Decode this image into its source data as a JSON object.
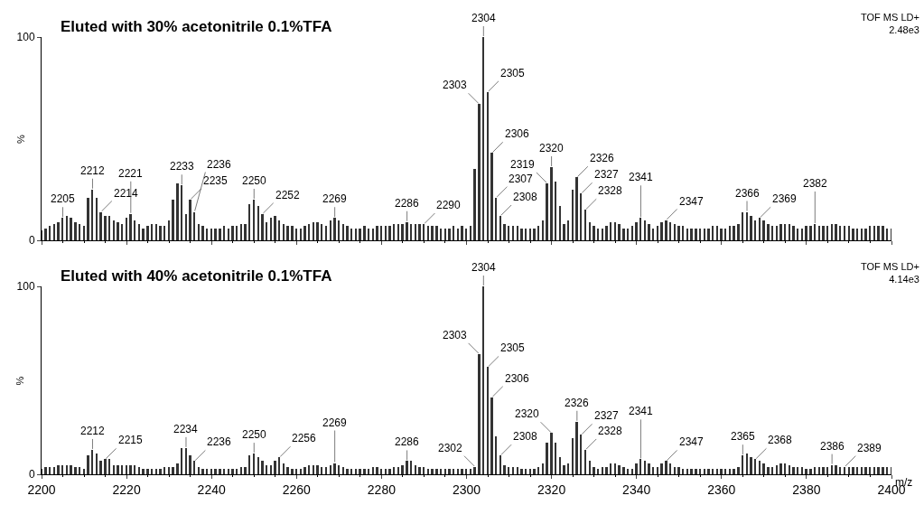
{
  "chart_data": [
    {
      "type": "bar",
      "title": "Eluted with 30% acetonitrile 0.1%TFA",
      "ylabel": "%",
      "color": "#333333",
      "x": [
        2200,
        2201,
        2202,
        2203,
        2204,
        2205,
        2206,
        2207,
        2208,
        2209,
        2210,
        2211,
        2212,
        2213,
        2214,
        2215,
        2216,
        2217,
        2218,
        2219,
        2220,
        2221,
        2222,
        2223,
        2224,
        2225,
        2226,
        2227,
        2228,
        2229,
        2230,
        2231,
        2232,
        2233,
        2234,
        2235,
        2236,
        2237,
        2238,
        2239,
        2240,
        2241,
        2242,
        2243,
        2244,
        2245,
        2246,
        2247,
        2248,
        2249,
        2250,
        2251,
        2252,
        2253,
        2254,
        2255,
        2256,
        2257,
        2258,
        2259,
        2260,
        2261,
        2262,
        2263,
        2264,
        2265,
        2266,
        2267,
        2268,
        2269,
        2270,
        2271,
        2272,
        2273,
        2274,
        2275,
        2276,
        2277,
        2278,
        2279,
        2280,
        2281,
        2282,
        2283,
        2284,
        2285,
        2286,
        2287,
        2288,
        2289,
        2290,
        2291,
        2292,
        2293,
        2294,
        2295,
        2296,
        2297,
        2298,
        2299,
        2300,
        2301,
        2302,
        2303,
        2304,
        2305,
        2306,
        2307,
        2308,
        2309,
        2310,
        2311,
        2312,
        2313,
        2314,
        2315,
        2316,
        2317,
        2318,
        2319,
        2320,
        2321,
        2322,
        2323,
        2324,
        2325,
        2326,
        2327,
        2328,
        2329,
        2330,
        2331,
        2332,
        2333,
        2334,
        2335,
        2336,
        2337,
        2338,
        2339,
        2340,
        2341,
        2342,
        2343,
        2344,
        2345,
        2346,
        2347,
        2348,
        2349,
        2350,
        2351,
        2352,
        2353,
        2354,
        2355,
        2356,
        2357,
        2358,
        2359,
        2360,
        2361,
        2362,
        2363,
        2364,
        2365,
        2366,
        2367,
        2368,
        2369,
        2370,
        2371,
        2372,
        2373,
        2374,
        2375,
        2376,
        2377,
        2378,
        2379,
        2380,
        2381,
        2382,
        2383,
        2384,
        2385,
        2386,
        2387,
        2388,
        2389,
        2390,
        2391,
        2392,
        2393,
        2394,
        2395,
        2396,
        2397,
        2398,
        2399,
        2400
      ],
      "values": [
        5,
        6,
        7,
        8,
        9,
        11,
        12,
        11,
        9,
        8,
        7,
        21,
        25,
        21,
        14,
        12,
        12,
        10,
        9,
        8,
        11,
        13,
        10,
        8,
        6,
        7,
        8,
        8,
        7,
        7,
        10,
        20,
        28,
        27,
        13,
        20,
        14,
        8,
        7,
        6,
        6,
        6,
        6,
        7,
        6,
        7,
        7,
        8,
        8,
        18,
        20,
        17,
        13,
        9,
        11,
        12,
        10,
        8,
        7,
        7,
        6,
        6,
        7,
        8,
        9,
        9,
        8,
        7,
        10,
        11,
        10,
        8,
        7,
        6,
        6,
        6,
        7,
        6,
        6,
        7,
        7,
        7,
        7,
        8,
        8,
        8,
        9,
        8,
        8,
        8,
        8,
        7,
        7,
        7,
        6,
        6,
        6,
        7,
        6,
        7,
        6,
        7,
        35,
        67,
        100,
        73,
        43,
        21,
        12,
        8,
        7,
        7,
        7,
        6,
        6,
        6,
        6,
        7,
        10,
        28,
        36,
        29,
        17,
        8,
        10,
        25,
        31,
        23,
        15,
        9,
        7,
        6,
        6,
        7,
        9,
        9,
        8,
        6,
        6,
        7,
        9,
        11,
        10,
        8,
        6,
        7,
        9,
        10,
        9,
        8,
        7,
        7,
        6,
        6,
        6,
        6,
        6,
        6,
        7,
        7,
        6,
        6,
        7,
        7,
        8,
        14,
        14,
        12,
        10,
        11,
        10,
        8,
        7,
        7,
        8,
        8,
        8,
        7,
        6,
        6,
        7,
        7,
        8,
        7,
        7,
        7,
        8,
        8,
        7,
        7,
        7,
        6,
        6,
        6,
        6,
        7,
        7,
        7,
        7,
        6,
        6
      ],
      "xlim": [
        2200,
        2400
      ],
      "xticks": [
        2200,
        2220,
        2240,
        2260,
        2280,
        2300,
        2320,
        2340,
        2360,
        2380,
        2400
      ],
      "ylim": [
        0,
        100
      ],
      "yticks": [
        0,
        100
      ],
      "tick_labels": "y",
      "annotations": [
        "TOF MS LD+\n2.48e3",
        {
          "text": "2205",
          "x": 2205,
          "y": 11
        },
        {
          "text": "2212",
          "x": 2212,
          "y": 25
        },
        {
          "text": "2214",
          "x": 2214,
          "y": 14
        },
        {
          "text": "2221",
          "x": 2221,
          "y": 13
        },
        {
          "text": "2233",
          "x": 2233,
          "y": 27
        },
        {
          "text": "2235",
          "x": 2235,
          "y": 20
        },
        {
          "text": "2236",
          "x": 2236,
          "y": 14
        },
        {
          "text": "2250",
          "x": 2250,
          "y": 20
        },
        {
          "text": "2252",
          "x": 2252,
          "y": 13
        },
        {
          "text": "2269",
          "x": 2269,
          "y": 11
        },
        {
          "text": "2286",
          "x": 2286,
          "y": 9
        },
        {
          "text": "2290",
          "x": 2290,
          "y": 8
        },
        {
          "text": "2303",
          "x": 2303,
          "y": 67
        },
        {
          "text": "2304",
          "x": 2304,
          "y": 100
        },
        {
          "text": "2305",
          "x": 2305,
          "y": 73
        },
        {
          "text": "2306",
          "x": 2306,
          "y": 43
        },
        {
          "text": "2307",
          "x": 2307,
          "y": 21
        },
        {
          "text": "2308",
          "x": 2308,
          "y": 12
        },
        {
          "text": "2319",
          "x": 2319,
          "y": 28
        },
        {
          "text": "2320",
          "x": 2320,
          "y": 36
        },
        {
          "text": "2326",
          "x": 2326,
          "y": 31
        },
        {
          "text": "2327",
          "x": 2327,
          "y": 23
        },
        {
          "text": "2328",
          "x": 2328,
          "y": 15
        },
        {
          "text": "2341",
          "x": 2341,
          "y": 11
        },
        {
          "text": "2347",
          "x": 2347,
          "y": 10
        },
        {
          "text": "2366",
          "x": 2366,
          "y": 14
        },
        {
          "text": "2369",
          "x": 2369,
          "y": 11
        },
        {
          "text": "2382",
          "x": 2382,
          "y": 8
        }
      ]
    },
    {
      "type": "bar",
      "title": "Eluted with 40% acetonitrile 0.1%TFA",
      "ylabel": "%",
      "xlabel": "m/z",
      "color": "#333333",
      "x": [
        2200,
        2201,
        2202,
        2203,
        2204,
        2205,
        2206,
        2207,
        2208,
        2209,
        2210,
        2211,
        2212,
        2213,
        2214,
        2215,
        2216,
        2217,
        2218,
        2219,
        2220,
        2221,
        2222,
        2223,
        2224,
        2225,
        2226,
        2227,
        2228,
        2229,
        2230,
        2231,
        2232,
        2233,
        2234,
        2235,
        2236,
        2237,
        2238,
        2239,
        2240,
        2241,
        2242,
        2243,
        2244,
        2245,
        2246,
        2247,
        2248,
        2249,
        2250,
        2251,
        2252,
        2253,
        2254,
        2255,
        2256,
        2257,
        2258,
        2259,
        2260,
        2261,
        2262,
        2263,
        2264,
        2265,
        2266,
        2267,
        2268,
        2269,
        2270,
        2271,
        2272,
        2273,
        2274,
        2275,
        2276,
        2277,
        2278,
        2279,
        2280,
        2281,
        2282,
        2283,
        2284,
        2285,
        2286,
        2287,
        2288,
        2289,
        2290,
        2291,
        2292,
        2293,
        2294,
        2295,
        2296,
        2297,
        2298,
        2299,
        2300,
        2301,
        2302,
        2303,
        2304,
        2305,
        2306,
        2307,
        2308,
        2309,
        2310,
        2311,
        2312,
        2313,
        2314,
        2315,
        2316,
        2317,
        2318,
        2319,
        2320,
        2321,
        2322,
        2323,
        2324,
        2325,
        2326,
        2327,
        2328,
        2329,
        2330,
        2331,
        2332,
        2333,
        2334,
        2335,
        2336,
        2337,
        2338,
        2339,
        2340,
        2341,
        2342,
        2343,
        2344,
        2345,
        2346,
        2347,
        2348,
        2349,
        2350,
        2351,
        2352,
        2353,
        2354,
        2355,
        2356,
        2357,
        2358,
        2359,
        2360,
        2361,
        2362,
        2363,
        2364,
        2365,
        2366,
        2367,
        2368,
        2369,
        2370,
        2371,
        2372,
        2373,
        2374,
        2375,
        2376,
        2377,
        2378,
        2379,
        2380,
        2381,
        2382,
        2383,
        2384,
        2385,
        2386,
        2387,
        2388,
        2389,
        2390,
        2391,
        2392,
        2393,
        2394,
        2395,
        2396,
        2397,
        2398,
        2399,
        2400
      ],
      "values": [
        3,
        4,
        4,
        4,
        5,
        5,
        5,
        5,
        4,
        4,
        3,
        10,
        13,
        11,
        7,
        8,
        8,
        5,
        5,
        5,
        5,
        5,
        5,
        4,
        3,
        3,
        3,
        3,
        3,
        4,
        4,
        4,
        6,
        14,
        14,
        10,
        7,
        4,
        3,
        3,
        3,
        3,
        3,
        3,
        3,
        3,
        3,
        4,
        4,
        10,
        11,
        9,
        7,
        5,
        5,
        7,
        9,
        6,
        4,
        3,
        3,
        3,
        4,
        5,
        5,
        5,
        4,
        4,
        5,
        6,
        5,
        4,
        3,
        3,
        3,
        3,
        3,
        3,
        4,
        4,
        3,
        3,
        3,
        4,
        4,
        5,
        7,
        7,
        5,
        4,
        4,
        3,
        3,
        3,
        3,
        3,
        3,
        3,
        3,
        3,
        3,
        3,
        4,
        64,
        100,
        57,
        41,
        20,
        10,
        5,
        4,
        4,
        4,
        3,
        3,
        3,
        3,
        4,
        6,
        17,
        22,
        17,
        9,
        5,
        6,
        19,
        28,
        21,
        13,
        7,
        4,
        3,
        4,
        4,
        6,
        6,
        5,
        4,
        3,
        3,
        6,
        8,
        7,
        6,
        4,
        4,
        6,
        7,
        6,
        4,
        4,
        3,
        3,
        3,
        3,
        3,
        3,
        3,
        3,
        3,
        3,
        3,
        3,
        3,
        4,
        10,
        11,
        9,
        8,
        7,
        6,
        4,
        4,
        5,
        6,
        6,
        5,
        4,
        4,
        4,
        3,
        3,
        4,
        4,
        4,
        4,
        5,
        5,
        4,
        4,
        4,
        4,
        4,
        4,
        4,
        4,
        4,
        4,
        4,
        4,
        4
      ],
      "xlim": [
        2200,
        2400
      ],
      "xticks": [
        2200,
        2220,
        2240,
        2260,
        2280,
        2300,
        2320,
        2340,
        2360,
        2380,
        2400
      ],
      "ylim": [
        0,
        100
      ],
      "yticks": [
        0,
        100
      ],
      "annotations": [
        "TOF MS LD+\n4.14e3",
        {
          "text": "2212",
          "x": 2212,
          "y": 13
        },
        {
          "text": "2215",
          "x": 2215,
          "y": 8
        },
        {
          "text": "2234",
          "x": 2234,
          "y": 14
        },
        {
          "text": "2236",
          "x": 2236,
          "y": 7
        },
        {
          "text": "2250",
          "x": 2250,
          "y": 11
        },
        {
          "text": "2256",
          "x": 2256,
          "y": 9
        },
        {
          "text": "2269",
          "x": 2269,
          "y": 6
        },
        {
          "text": "2286",
          "x": 2286,
          "y": 7
        },
        {
          "text": "2302",
          "x": 2302,
          "y": 4
        },
        {
          "text": "2303",
          "x": 2303,
          "y": 64
        },
        {
          "text": "2304",
          "x": 2304,
          "y": 100
        },
        {
          "text": "2305",
          "x": 2305,
          "y": 57
        },
        {
          "text": "2306",
          "x": 2306,
          "y": 41
        },
        {
          "text": "2308",
          "x": 2308,
          "y": 10
        },
        {
          "text": "2320",
          "x": 2320,
          "y": 22
        },
        {
          "text": "2326",
          "x": 2326,
          "y": 28
        },
        {
          "text": "2327",
          "x": 2327,
          "y": 21
        },
        {
          "text": "2328",
          "x": 2328,
          "y": 13
        },
        {
          "text": "2341",
          "x": 2341,
          "y": 8
        },
        {
          "text": "2347",
          "x": 2347,
          "y": 7
        },
        {
          "text": "2365",
          "x": 2365,
          "y": 10
        },
        {
          "text": "2368",
          "x": 2368,
          "y": 8
        },
        {
          "text": "2386",
          "x": 2386,
          "y": 5
        },
        {
          "text": "2389",
          "x": 2389,
          "y": 4
        }
      ]
    }
  ]
}
